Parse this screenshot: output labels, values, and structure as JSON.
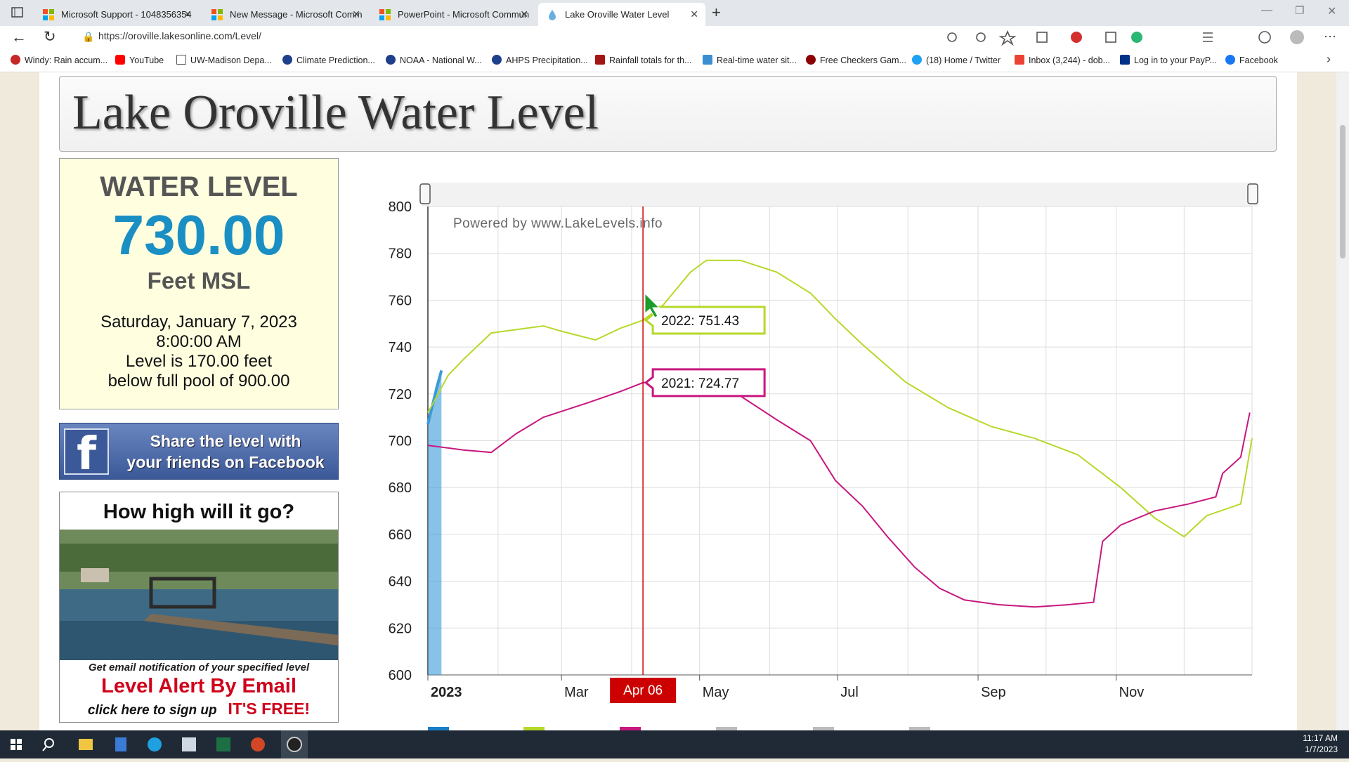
{
  "browser": {
    "tabs": [
      "Microsoft Support - 1048356354",
      "New Message - Microsoft Comm",
      "PowerPoint - Microsoft Commun",
      "Lake Oroville Water Level"
    ],
    "url": "https://oroville.lakesonline.com/Level/",
    "bookmarks": [
      "Windy: Rain accum...",
      "YouTube",
      "UW-Madison Depa...",
      "Climate Prediction...",
      "NOAA - National W...",
      "AHPS Precipitation...",
      "Rainfall totals for th...",
      "Real-time water sit...",
      "Free Checkers Gam...",
      "(18) Home / Twitter",
      "Inbox (3,244) - dob...",
      "Log in to your PayP...",
      "Facebook"
    ]
  },
  "page": {
    "title": "Lake Oroville Water Level",
    "level_box": {
      "heading": "WATER LEVEL",
      "level": "730.00",
      "unit": "Feet MSL",
      "date": "Saturday, January 7, 2023",
      "time": "8:00:00 AM",
      "note1": "Level is 170.00 feet",
      "note2": "below full pool of 900.00"
    },
    "facebook": {
      "line1": "Share the level with",
      "line2": "your friends on Facebook"
    },
    "ad": {
      "heading": "How high will it go?",
      "note": "Get email notification of your specified level",
      "title": "Level Alert By Email",
      "cta": "click here to sign up",
      "free": "IT'S FREE!"
    }
  },
  "chart_data": {
    "type": "line",
    "watermark": "Powered by www.LakeLevels.info",
    "xlim": [
      1,
      365
    ],
    "ylim": [
      600,
      800
    ],
    "yticks": [
      600,
      620,
      640,
      660,
      680,
      700,
      720,
      740,
      760,
      780,
      800
    ],
    "xticks": [
      {
        "value": 1,
        "label": "2023"
      },
      {
        "value": 60,
        "label": "Mar"
      },
      {
        "value": 121,
        "label": "May"
      },
      {
        "value": 182,
        "label": "Jul"
      },
      {
        "value": 244,
        "label": "Sep"
      },
      {
        "value": 305,
        "label": "Nov"
      }
    ],
    "x_gridlines": [
      32,
      60,
      91,
      121,
      152,
      182,
      213,
      244,
      274,
      305,
      335,
      365
    ],
    "grid": true,
    "series": [
      {
        "color": "#3a9ad9",
        "area": true,
        "x": [
          1,
          3,
          5,
          7
        ],
        "values": [
          707,
          715,
          723,
          730
        ]
      },
      {
        "color": "#b5d929",
        "x": [
          1,
          10,
          17,
          29,
          52,
          59,
          75,
          86,
          96,
          105,
          117,
          124,
          139,
          155,
          170,
          181,
          193,
          212,
          231,
          250,
          269,
          288,
          307,
          322,
          335,
          345,
          360,
          365
        ],
        "values": [
          712,
          728,
          735,
          746,
          749,
          747,
          743,
          748,
          751.43,
          758,
          772,
          777,
          777,
          772,
          763,
          752,
          741,
          725,
          714,
          706,
          701,
          694,
          680,
          667,
          659,
          668,
          673,
          701
        ]
      },
      {
        "color": "#c8177f",
        "x": [
          1,
          17,
          29,
          40,
          52,
          71,
          86,
          96,
          117,
          136,
          155,
          170,
          181,
          193,
          204,
          216,
          227,
          238,
          253,
          269,
          284,
          295,
          299,
          307,
          322,
          337,
          349,
          352,
          360,
          364
        ],
        "values": [
          698,
          696,
          695,
          703,
          710,
          716,
          721,
          724.77,
          727,
          721,
          709,
          700,
          683,
          672,
          659,
          646,
          637,
          632,
          630,
          629,
          630,
          631,
          657,
          664,
          670,
          673,
          676,
          686,
          693,
          712
        ]
      }
    ],
    "crosshair": {
      "x": 96,
      "label": "Apr 06"
    },
    "tooltips": [
      {
        "x": 96,
        "value": 751.43,
        "color": "#b5d929",
        "label": "2022: 751.43"
      },
      {
        "x": 96,
        "value": 724.77,
        "color": "#c8177f",
        "label": "2021: 724.77"
      }
    ]
  },
  "taskbar": {
    "time": "11:17 AM",
    "date": "1/7/2023"
  }
}
